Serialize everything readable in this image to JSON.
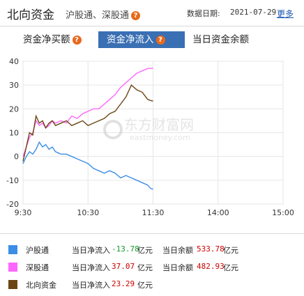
{
  "header": {
    "title": "北向资金",
    "subtitle": "沪股通、深股通",
    "date_label": "数据日期:",
    "date": "2021-07-29",
    "more": "更多"
  },
  "tabs": [
    {
      "label": "资金净买额",
      "help": "?",
      "active": false
    },
    {
      "label": "资金净流入",
      "help": "?",
      "active": true
    },
    {
      "label": "当日资金余额",
      "active": false
    }
  ],
  "watermark": {
    "cn": "东方财富网",
    "en": "eastmoney.com"
  },
  "chart_data": {
    "type": "line",
    "x_ticks": [
      "9:30",
      "10:30",
      "11:30",
      "14:00",
      "15:00"
    ],
    "y_ticks": [
      40,
      30,
      20,
      10,
      0,
      -10,
      -20
    ],
    "ylim": [
      -20,
      40
    ],
    "grid": true,
    "series": [
      {
        "name": "沪股通",
        "color": "#3b8ee8",
        "points": [
          [
            0,
            -3
          ],
          [
            3,
            0
          ],
          [
            6,
            2
          ],
          [
            9,
            1
          ],
          [
            12,
            3
          ],
          [
            15,
            6
          ],
          [
            18,
            4
          ],
          [
            21,
            5
          ],
          [
            24,
            3
          ],
          [
            27,
            4
          ],
          [
            30,
            2
          ],
          [
            35,
            1
          ],
          [
            40,
            1
          ],
          [
            45,
            0
          ],
          [
            50,
            -1
          ],
          [
            55,
            -2
          ],
          [
            60,
            -3
          ],
          [
            65,
            -5
          ],
          [
            70,
            -6
          ],
          [
            75,
            -7
          ],
          [
            80,
            -6
          ],
          [
            85,
            -7
          ],
          [
            90,
            -9
          ],
          [
            95,
            -8
          ],
          [
            100,
            -9
          ],
          [
            105,
            -10
          ],
          [
            110,
            -11
          ],
          [
            115,
            -12
          ],
          [
            118,
            -13.5
          ],
          [
            120,
            -13.78
          ]
        ]
      },
      {
        "name": "深股通",
        "color": "#ff66ff",
        "points": [
          [
            0,
            0
          ],
          [
            3,
            4
          ],
          [
            6,
            8
          ],
          [
            9,
            10
          ],
          [
            12,
            15
          ],
          [
            15,
            13
          ],
          [
            18,
            14
          ],
          [
            21,
            12
          ],
          [
            24,
            13
          ],
          [
            27,
            15
          ],
          [
            30,
            14
          ],
          [
            35,
            15
          ],
          [
            40,
            14
          ],
          [
            45,
            17
          ],
          [
            50,
            16
          ],
          [
            55,
            18
          ],
          [
            60,
            19
          ],
          [
            65,
            20
          ],
          [
            70,
            20
          ],
          [
            75,
            22
          ],
          [
            80,
            24
          ],
          [
            85,
            26
          ],
          [
            90,
            29
          ],
          [
            95,
            31
          ],
          [
            100,
            33
          ],
          [
            105,
            35
          ],
          [
            110,
            36
          ],
          [
            115,
            37
          ],
          [
            118,
            37
          ],
          [
            120,
            37.07
          ]
        ]
      },
      {
        "name": "北向资金",
        "color": "#6b4513",
        "points": [
          [
            0,
            -2
          ],
          [
            3,
            4
          ],
          [
            6,
            10
          ],
          [
            9,
            9
          ],
          [
            12,
            17
          ],
          [
            15,
            14
          ],
          [
            18,
            15
          ],
          [
            21,
            12
          ],
          [
            24,
            14
          ],
          [
            27,
            15
          ],
          [
            30,
            13
          ],
          [
            35,
            14
          ],
          [
            40,
            15
          ],
          [
            45,
            13
          ],
          [
            50,
            14
          ],
          [
            55,
            15
          ],
          [
            60,
            13
          ],
          [
            65,
            14
          ],
          [
            70,
            15
          ],
          [
            75,
            16
          ],
          [
            80,
            18
          ],
          [
            85,
            19
          ],
          [
            90,
            22
          ],
          [
            95,
            25
          ],
          [
            100,
            30
          ],
          [
            105,
            28
          ],
          [
            110,
            27
          ],
          [
            115,
            24
          ],
          [
            118,
            23.5
          ],
          [
            120,
            23.29
          ]
        ]
      }
    ]
  },
  "legend": [
    {
      "name": "沪股通",
      "color": "#3b8ee8",
      "flow_label": "当日净流入",
      "flow": "-13.78",
      "unit": "亿元",
      "balance_label": "当日余额",
      "balance": "533.78",
      "sign": "neg"
    },
    {
      "name": "深股通",
      "color": "#ff66ff",
      "flow_label": "当日净流入",
      "flow": "37.07",
      "unit": "亿元",
      "balance_label": "当日余额",
      "balance": "482.93",
      "sign": "pos"
    },
    {
      "name": "北向资金",
      "color": "#6b4513",
      "flow_label": "当日净流入",
      "flow": "23.29",
      "unit": "亿元",
      "sign": "pos"
    }
  ]
}
